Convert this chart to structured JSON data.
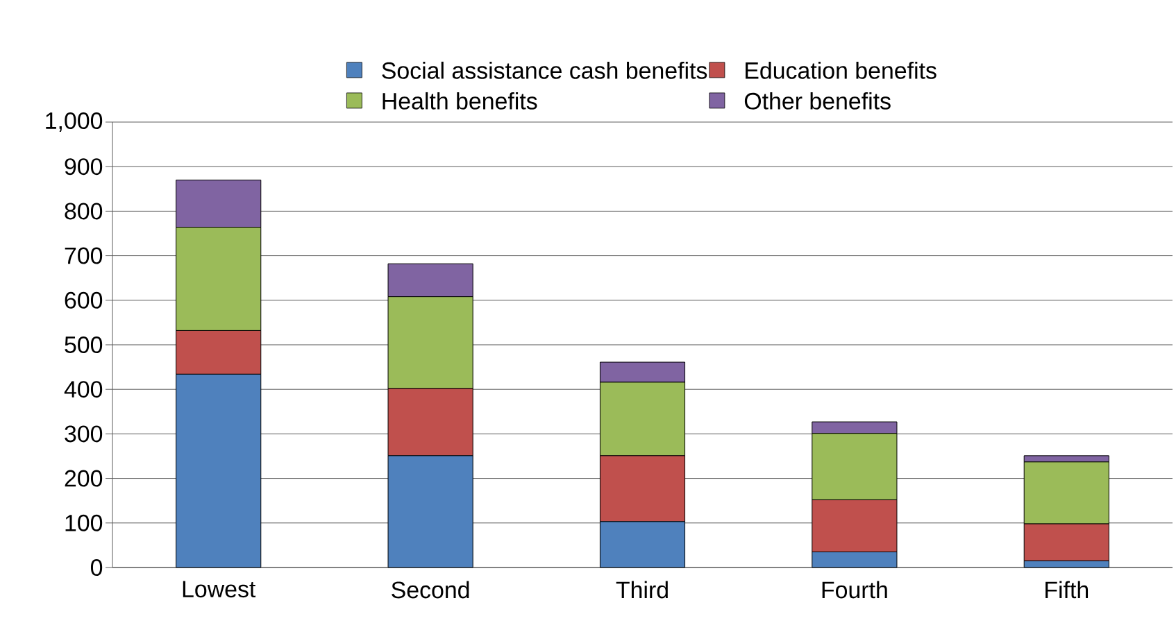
{
  "chart_data": {
    "type": "bar",
    "stacked": true,
    "categories": [
      "Lowest",
      "Second",
      "Third",
      "Fourth",
      "Fifth"
    ],
    "series": [
      {
        "name": "Social assistance cash benefits",
        "color": "#4f81bd",
        "values": [
          434,
          251,
          103,
          35,
          15
        ]
      },
      {
        "name": "Education benefits",
        "color": "#c0504d",
        "values": [
          98,
          151,
          148,
          117,
          83
        ]
      },
      {
        "name": "Health benefits",
        "color": "#9bbb59",
        "values": [
          232,
          206,
          165,
          149,
          139
        ]
      },
      {
        "name": "Other benefits",
        "color": "#8064a2",
        "values": [
          106,
          74,
          45,
          26,
          14
        ]
      }
    ],
    "ylim": [
      0,
      1000
    ],
    "yticks": [
      0,
      100,
      200,
      300,
      400,
      500,
      600,
      700,
      800,
      900,
      {
        "value": 1000,
        "label": "1,000"
      }
    ],
    "grid": "y",
    "legend": "top"
  }
}
